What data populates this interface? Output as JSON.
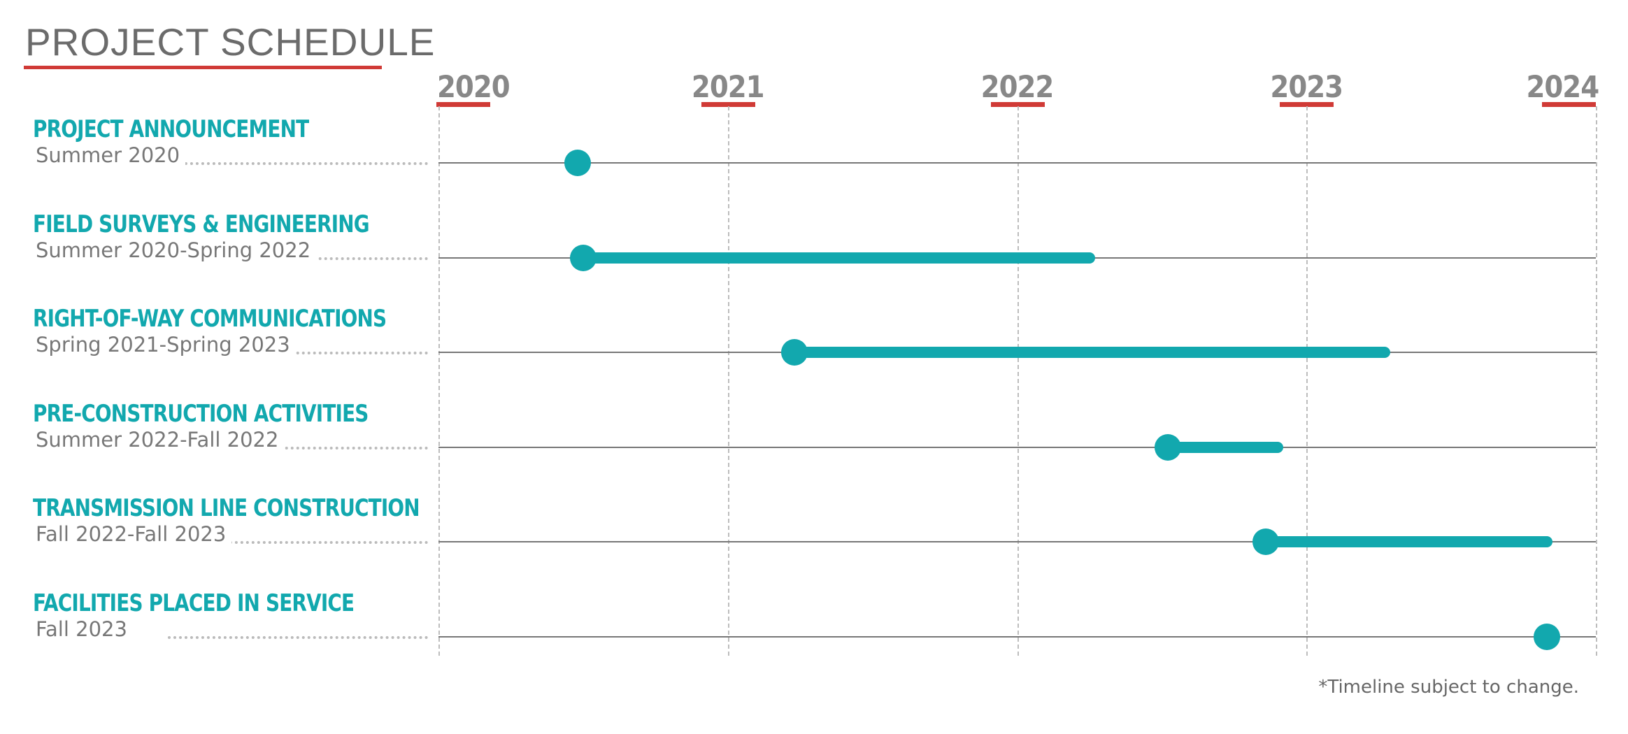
{
  "title": "PROJECT SCHEDULE",
  "footnote": "*Timeline subject to change.",
  "colors": {
    "accent": "#d03a36",
    "bar": "#12a8ae",
    "task_text": "#12a8ae",
    "muted_text": "#777777"
  },
  "chart_data": {
    "type": "gantt",
    "title": "PROJECT SCHEDULE",
    "x_axis": {
      "ticks": [
        "2020",
        "2021",
        "2022",
        "2023",
        "2024"
      ],
      "range": [
        2020.0,
        2024.0
      ]
    },
    "grid": true,
    "tasks": [
      {
        "name": "PROJECT ANNOUNCEMENT",
        "date_label": "Summer 2020",
        "start": 2020.48,
        "end": 2020.48,
        "milestone": true
      },
      {
        "name": "FIELD SURVEYS & ENGINEERING",
        "date_label": "Summer 2020-Spring 2022",
        "start": 2020.5,
        "end": 2022.25,
        "milestone": false
      },
      {
        "name": "RIGHT-OF-WAY COMMUNICATIONS",
        "date_label": "Spring 2021-Spring 2023",
        "start": 2021.23,
        "end": 2023.27,
        "milestone": false
      },
      {
        "name": "PRE-CONSTRUCTION ACTIVITIES",
        "date_label": "Summer 2022-Fall 2022",
        "start": 2022.52,
        "end": 2022.9,
        "milestone": false
      },
      {
        "name": "TRANSMISSION LINE CONSTRUCTION",
        "date_label": "Fall 2022-Fall 2023",
        "start": 2022.86,
        "end": 2023.83,
        "milestone": false
      },
      {
        "name": "FACILITIES PLACED IN SERVICE",
        "date_label": "Fall 2023",
        "start": 2023.83,
        "end": 2023.83,
        "milestone": true
      }
    ]
  }
}
